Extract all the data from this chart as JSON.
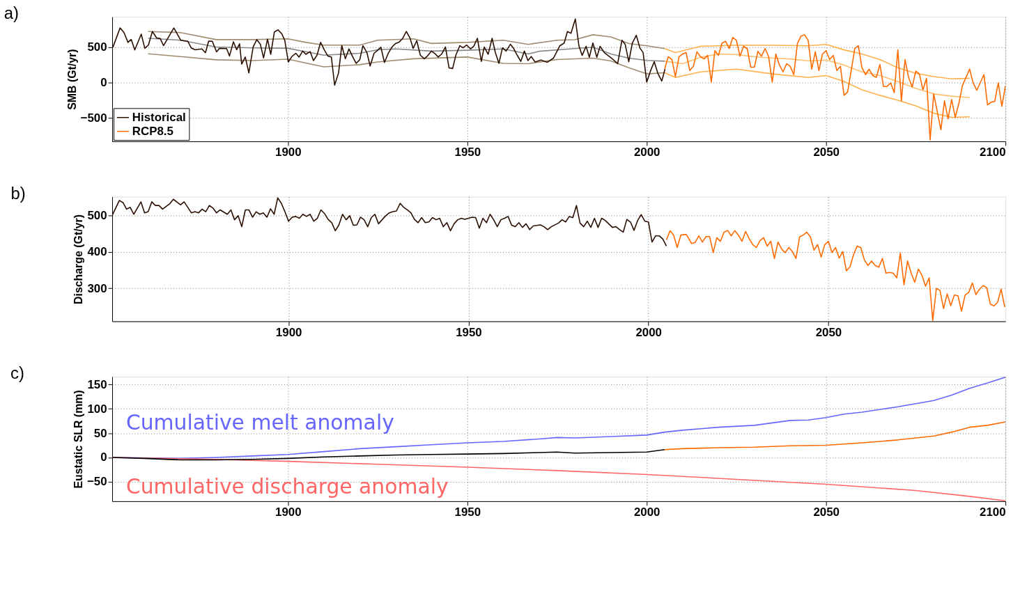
{
  "chart_data": [
    {
      "type": "line",
      "title": "a)",
      "ylabel": "SMB (Gt/yr)",
      "xlim": [
        1851,
        2100
      ],
      "xticks": [
        1900,
        1950,
        2000,
        2050,
        2100
      ],
      "ylim": [
        -830,
        930
      ],
      "yticks": [
        -500,
        0,
        500
      ],
      "grid": true,
      "legend": "bottom left",
      "series": [
        {
          "color": "#a08c70",
          "x": [
            1861,
            1870,
            1880,
            1890,
            1900,
            1905,
            1910,
            1920,
            1925,
            1935,
            1940,
            1950,
            1960,
            1967,
            1975,
            1980,
            1985,
            1990,
            1995,
            2000,
            2005
          ],
          "values": [
            723,
            708,
            608,
            608,
            619,
            569,
            531,
            531,
            600,
            619,
            554,
            569,
            600,
            541,
            599,
            607,
            677,
            646,
            552,
            521,
            482
          ]
        },
        {
          "color": "#a08c70",
          "x": [
            1861,
            1870,
            1880,
            1890,
            1900,
            1910,
            1920,
            1925,
            1935,
            1950,
            1960,
            1967,
            1975,
            1985,
            1990,
            1995,
            2000,
            2005
          ],
          "values": [
            408,
            369,
            323,
            312,
            331,
            223,
            254,
            292,
            338,
            362,
            273,
            268,
            327,
            346,
            307,
            210,
            124,
            140
          ]
        },
        {
          "color": "#888888",
          "x": [
            1861,
            1870,
            1880,
            1890,
            1900,
            1910,
            1920,
            1925,
            1930,
            1940,
            1950,
            1960,
            1967,
            1970,
            1980,
            1985,
            1990,
            1995,
            2000,
            2005
          ],
          "values": [
            627,
            600,
            504,
            492,
            485,
            388,
            415,
            465,
            477,
            446,
            458,
            477,
            405,
            443,
            482,
            501,
            405,
            346,
            315,
            303
          ]
        },
        {
          "color": "#ffb04a",
          "x": [
            2005,
            2008,
            2015,
            2025,
            2035,
            2045,
            2050,
            2055,
            2060,
            2065,
            2070,
            2075,
            2080,
            2085,
            2090
          ],
          "values": [
            482,
            424,
            513,
            529,
            529,
            521,
            541,
            463,
            405,
            327,
            210,
            132,
            86,
            54,
            62
          ]
        },
        {
          "color": "#ffb04a",
          "x": [
            2005,
            2008,
            2015,
            2025,
            2035,
            2045,
            2050,
            2055,
            2060,
            2065,
            2070,
            2075,
            2080,
            2085,
            2090
          ],
          "values": [
            140,
            74,
            152,
            191,
            124,
            74,
            101,
            16,
            -101,
            -179,
            -249,
            -327,
            -432,
            -490,
            -482
          ]
        },
        {
          "color": "#ffc070",
          "x": [
            2005,
            2010,
            2015,
            2020,
            2025,
            2030,
            2035,
            2040,
            2045,
            2050,
            2055,
            2060,
            2065,
            2070,
            2075,
            2080,
            2085,
            2090
          ],
          "values": [
            303,
            268,
            358,
            405,
            397,
            366,
            346,
            335,
            307,
            319,
            249,
            152,
            101,
            16,
            -82,
            -159,
            -191,
            -210
          ]
        },
        {
          "name": "Historical",
          "color": "#2a0e00",
          "x": [
            1851.2,
            1853.2,
            1854.3,
            1855.4,
            1856.3,
            1857.3,
            1859.1,
            1860.1,
            1861.1,
            1862.2,
            1863.4,
            1864.4,
            1865.3,
            1868.2,
            1870.1,
            1872.1,
            1873.0,
            1874.1,
            1876.0,
            1877.0,
            1877.9,
            1878.9,
            1880.1,
            1880.9,
            1882.9,
            1883.7,
            1884.8,
            1885.7,
            1886.5,
            1887.1,
            1888.1,
            1889.1,
            1890.3,
            1891.3,
            1892.3,
            1893.2,
            1894.3,
            1895.2,
            1896.2,
            1897.2,
            1898.2,
            1899.1,
            1900.1,
            1901.1,
            1902.2,
            1903.1,
            1904.1,
            1905.0,
            1906.2,
            1907.1,
            1908.1,
            1909.1,
            1910.1,
            1911.1,
            1912.1,
            1913.0,
            1914.1,
            1915.0,
            1916.0,
            1917.0,
            1918.0,
            1919.0,
            1920.0,
            1920.9,
            1922.0,
            1922.9,
            1924.0,
            1924.9,
            1925.9,
            1926.9,
            1927.9,
            1929.0,
            1930.0,
            1930.9,
            1931.9,
            1933.0,
            1934.0,
            1934.9,
            1935.9,
            1936.9,
            1938.0,
            1938.9,
            1940.0,
            1941.0,
            1941.9,
            1942.9,
            1943.9,
            1944.9,
            1945.9,
            1946.8,
            1947.9,
            1948.8,
            1949.8,
            1950.9,
            1951.8,
            1952.8,
            1953.9,
            1954.7,
            1955.8,
            1956.9,
            1957.8,
            1958.8,
            1959.8,
            1960.8,
            1962.0,
            1962.8,
            1963.9,
            1964.9,
            1965.9,
            1966.9,
            1967.8,
            1968.9,
            1970.5,
            1972.3,
            1974.0,
            1975.8,
            1977.0,
            1977.9,
            1978.9,
            1980.1,
            1981.1,
            1982.0,
            1983.1,
            1984.0,
            1985.0,
            1986.1,
            1987.0,
            1988.2,
            1990.2,
            1991.9,
            1993.1,
            1994.0,
            1995.0,
            1996.0,
            1997.1,
            1998.1,
            1999.0,
            2000.0,
            2001.1,
            2002.1,
            2003.1,
            2004.2,
            2005.1
          ],
          "values": [
            500,
            773,
            708,
            569,
            611,
            462,
            685,
            485,
            531,
            723,
            631,
            623,
            523,
            773,
            600,
            585,
            492,
            465,
            477,
            423,
            588,
            585,
            435,
            485,
            481,
            377,
            577,
            465,
            550,
            262,
            362,
            138,
            504,
            608,
            542,
            350,
            615,
            400,
            715,
            746,
            696,
            600,
            292,
            369,
            415,
            362,
            446,
            400,
            438,
            312,
            388,
            569,
            465,
            377,
            362,
            -35,
            138,
            523,
            338,
            477,
            369,
            273,
            323,
            523,
            427,
            235,
            415,
            454,
            500,
            285,
            408,
            504,
            554,
            569,
            619,
            723,
            631,
            485,
            592,
            388,
            338,
            377,
            446,
            408,
            362,
            408,
            504,
            208,
            200,
            388,
            523,
            492,
            531,
            477,
            515,
            627,
            300,
            504,
            400,
            627,
            427,
            273,
            492,
            446,
            542,
            492,
            388,
            300,
            446,
            312,
            369,
            292,
            319,
            288,
            346,
            521,
            560,
            723,
            697,
            900,
            521,
            385,
            513,
            358,
            560,
            358,
            513,
            424,
            346,
            268,
            599,
            541,
            296,
            560,
            669,
            490,
            424,
            8,
            171,
            296,
            132,
            23,
            191
          ]
        },
        {
          "name": "RCP8.5",
          "color": "#ff6a00",
          "x": [
            2005,
            2006,
            2007,
            2008,
            2009,
            2010,
            2011,
            2012,
            2013,
            2014,
            2015,
            2016,
            2017,
            2018,
            2019,
            2020,
            2021,
            2022,
            2023,
            2024,
            2025,
            2026,
            2027,
            2028,
            2029,
            2030,
            2031,
            2032,
            2033,
            2034,
            2035,
            2036,
            2037,
            2038,
            2039,
            2040,
            2041,
            2042,
            2043,
            2044,
            2045,
            2046,
            2047,
            2048,
            2049,
            2050,
            2051,
            2052,
            2053,
            2054,
            2055,
            2056,
            2057,
            2058,
            2059,
            2060,
            2061,
            2062,
            2063,
            2064,
            2065,
            2066,
            2067,
            2068,
            2069,
            2070,
            2071,
            2072,
            2073,
            2074,
            2075,
            2076,
            2077,
            2078,
            2079,
            2080,
            2082,
            2083,
            2084,
            2085,
            2086,
            2087,
            2088,
            2090,
            2091,
            2092,
            2094,
            2095,
            2096,
            2097,
            2098,
            2099,
            2100
          ],
          "values": [
            191,
            366,
            327,
            86,
            366,
            405,
            424,
            171,
            230,
            436,
            366,
            335,
            385,
            8,
            451,
            385,
            560,
            584,
            482,
            638,
            599,
            373,
            513,
            482,
            218,
            218,
            443,
            373,
            482,
            366,
            8,
            405,
            249,
            152,
            268,
            230,
            113,
            552,
            657,
            677,
            599,
            191,
            436,
            171,
            405,
            451,
            327,
            385,
            171,
            230,
            -179,
            -132,
            171,
            482,
            521,
            210,
            113,
            191,
            101,
            74,
            257,
            -54,
            -54,
            -4,
            -140,
            463,
            -257,
            327,
            74,
            -62,
            163,
            124,
            -101,
            62,
            -810,
            -159,
            -665,
            -257,
            -510,
            -237,
            -490,
            -296,
            -43,
            191,
            -4,
            -109,
            113,
            -315,
            -276,
            -265,
            -4,
            -335,
            -43
          ]
        }
      ]
    },
    {
      "type": "line",
      "title": "b)",
      "ylabel": "Discharge (Gt/yr)",
      "xlim": [
        1851,
        2099.2
      ],
      "xticks": [
        1900,
        1950,
        2000,
        2050
      ],
      "ylim": [
        210,
        551
      ],
      "yticks": [
        300,
        400,
        500
      ],
      "grid": true,
      "series": [
        {
          "color": "#2a0e00",
          "x": [
            1851,
            1853,
            1854,
            1855,
            1856,
            1857,
            1859,
            1860,
            1861,
            1862,
            1863,
            1864,
            1865,
            1867,
            1868,
            1870,
            1871,
            1873,
            1874,
            1875,
            1876,
            1877,
            1878,
            1879,
            1880,
            1881,
            1883,
            1884,
            1885,
            1886,
            1887,
            1888,
            1889,
            1890,
            1891,
            1892,
            1893,
            1894,
            1895,
            1896,
            1897,
            1898,
            1899,
            1900,
            1901,
            1902,
            1903,
            1904,
            1905,
            1906,
            1907,
            1908,
            1909,
            1910,
            1911,
            1912,
            1913,
            1914,
            1915,
            1916,
            1917,
            1918,
            1919,
            1920,
            1921,
            1922,
            1923,
            1924,
            1925,
            1926,
            1927,
            1928,
            1929,
            1930,
            1931,
            1932,
            1933,
            1934,
            1935,
            1936,
            1937,
            1938,
            1939,
            1940,
            1941,
            1942,
            1943,
            1944,
            1945,
            1946,
            1947,
            1948,
            1949,
            1950,
            1951,
            1952,
            1953,
            1954,
            1955,
            1956,
            1957,
            1958,
            1959,
            1960,
            1961,
            1962,
            1963,
            1964,
            1965,
            1966,
            1967,
            1968,
            1970,
            1971,
            1972,
            1973,
            1975,
            1976,
            1977,
            1978,
            1979,
            1980,
            1981,
            1982,
            1983,
            1984,
            1985,
            1986,
            1987,
            1988,
            1990,
            1991,
            1992,
            1993,
            1994,
            1995,
            1996,
            1997,
            1998,
            1999,
            2000,
            2001,
            2002,
            2003,
            2004,
            2005
          ],
          "values": [
            500,
            541,
            535,
            517,
            522,
            503,
            537,
            507,
            510,
            537,
            527,
            527,
            517,
            532,
            544,
            529,
            537,
            507,
            510,
            507,
            517,
            510,
            527,
            520,
            507,
            515,
            503,
            515,
            488,
            499,
            469,
            515,
            515,
            495,
            510,
            503,
            507,
            495,
            518,
            503,
            548,
            533,
            510,
            484,
            495,
            497,
            492,
            503,
            497,
            503,
            484,
            492,
            515,
            505,
            489,
            480,
            458,
            474,
            503,
            488,
            499,
            473,
            474,
            495,
            488,
            469,
            494,
            503,
            477,
            488,
            499,
            507,
            510,
            512,
            533,
            522,
            515,
            507,
            489,
            480,
            494,
            480,
            482,
            494,
            488,
            492,
            469,
            480,
            458,
            477,
            488,
            492,
            489,
            492,
            495,
            494,
            465,
            492,
            480,
            503,
            488,
            469,
            488,
            492,
            497,
            473,
            469,
            480,
            467,
            477,
            461,
            471,
            474,
            469,
            461,
            469,
            479,
            488,
            482,
            497,
            494,
            527,
            479,
            469,
            484,
            467,
            492,
            467,
            492,
            486,
            467,
            469,
            461,
            454,
            489,
            482,
            459,
            486,
            502,
            484,
            482,
            427,
            444,
            444,
            435,
            416
          ]
        },
        {
          "color": "#ff6a00",
          "x": [
            2005,
            2006,
            2007,
            2008,
            2009,
            2010.5,
            2012,
            2013,
            2014,
            2015,
            2016,
            2017,
            2018,
            2019,
            2020,
            2021,
            2022,
            2023,
            2024,
            2025,
            2026,
            2027,
            2028,
            2029,
            2030,
            2031,
            2032,
            2033,
            2034,
            2035,
            2036,
            2037,
            2038,
            2039,
            2040,
            2041,
            2042,
            2043,
            2044,
            2045,
            2046,
            2047,
            2048,
            2049,
            2050,
            2051,
            2052,
            2053,
            2054,
            2055,
            2056,
            2057,
            2058,
            2059,
            2060,
            2061,
            2062,
            2063,
            2064,
            2065,
            2066,
            2067,
            2068,
            2069,
            2070,
            2071,
            2072,
            2073,
            2074,
            2075,
            2076,
            2077,
            2078,
            2079,
            2080,
            2081,
            2082,
            2083,
            2084,
            2085,
            2086,
            2087,
            2088,
            2089,
            2090,
            2091,
            2092,
            2093,
            2094,
            2095,
            2096,
            2097,
            2098,
            2099
          ],
          "values": [
            433,
            458,
            446,
            412,
            446,
            448,
            423,
            426,
            444,
            427,
            442,
            442,
            398,
            439,
            429,
            454,
            459,
            444,
            458,
            446,
            429,
            456,
            436,
            420,
            412,
            431,
            439,
            416,
            429,
            382,
            427,
            408,
            398,
            412,
            401,
            382,
            441,
            446,
            454,
            441,
            405,
            420,
            386,
            420,
            429,
            398,
            412,
            383,
            401,
            348,
            359,
            393,
            416,
            412,
            378,
            363,
            375,
            363,
            358,
            382,
            342,
            344,
            342,
            329,
            397,
            310,
            375,
            342,
            317,
            353,
            336,
            306,
            329,
            212,
            300,
            295,
            245,
            285,
            253,
            282,
            280,
            238,
            282,
            289,
            315,
            283,
            298,
            308,
            302,
            257,
            252,
            262,
            298,
            249
          ]
        }
      ]
    },
    {
      "type": "line",
      "title": "c)",
      "ylabel": "Eustatic SLR (mm)",
      "xlim": [
        1851,
        2100
      ],
      "xticks": [
        1900,
        1950,
        2000,
        2050,
        2100
      ],
      "ylim": [
        -90,
        166
      ],
      "yticks": [
        -50,
        0,
        50,
        100,
        150
      ],
      "grid": true,
      "series": [
        {
          "name": "Cumulative melt anomaly",
          "color": "#6666ff",
          "x": [
            1851,
            1870,
            1880,
            1890,
            1900,
            1910,
            1920,
            1930,
            1940,
            1950,
            1960,
            1970,
            1975,
            1980,
            1990,
            2000,
            2005,
            2010,
            2020,
            2030,
            2040,
            2045,
            2050,
            2055,
            2060,
            2070,
            2080,
            2085,
            2090,
            2095,
            2100
          ],
          "values": [
            0,
            -2,
            0,
            3,
            6,
            12,
            18,
            22,
            26,
            30,
            33,
            38,
            41,
            40,
            43,
            46,
            52,
            56,
            62,
            66,
            76,
            77,
            82,
            89,
            93,
            104,
            117,
            128,
            142,
            153,
            165
          ]
        },
        {
          "name": "Cumulative discharge anomaly",
          "color": "#ff6666",
          "x": [
            1851,
            1880,
            1900,
            1925,
            1950,
            1975,
            2000,
            2025,
            2050,
            2075,
            2090,
            2100
          ],
          "values": [
            0,
            -4,
            -8,
            -14,
            -20,
            -27,
            -35,
            -45,
            -55,
            -68,
            -80,
            -89
          ]
        },
        {
          "color": "#000000",
          "x": [
            1851,
            1860,
            1870,
            1880,
            1890,
            1900,
            1910,
            1920,
            1930,
            1940,
            1950,
            1960,
            1970,
            1975,
            1980,
            1990,
            2000,
            2005
          ],
          "values": [
            0,
            -2,
            -5,
            -5,
            -4,
            -2,
            1,
            3,
            5,
            6,
            7,
            8,
            10,
            11,
            9,
            10,
            11,
            16
          ]
        },
        {
          "color": "#ff6a00",
          "x": [
            2005,
            2010,
            2020,
            2030,
            2040,
            2050,
            2060,
            2070,
            2080,
            2085,
            2090,
            2095,
            2100
          ],
          "values": [
            16,
            18,
            20,
            21,
            24,
            25,
            30,
            36,
            44,
            52,
            62,
            66,
            73
          ]
        }
      ]
    }
  ]
}
